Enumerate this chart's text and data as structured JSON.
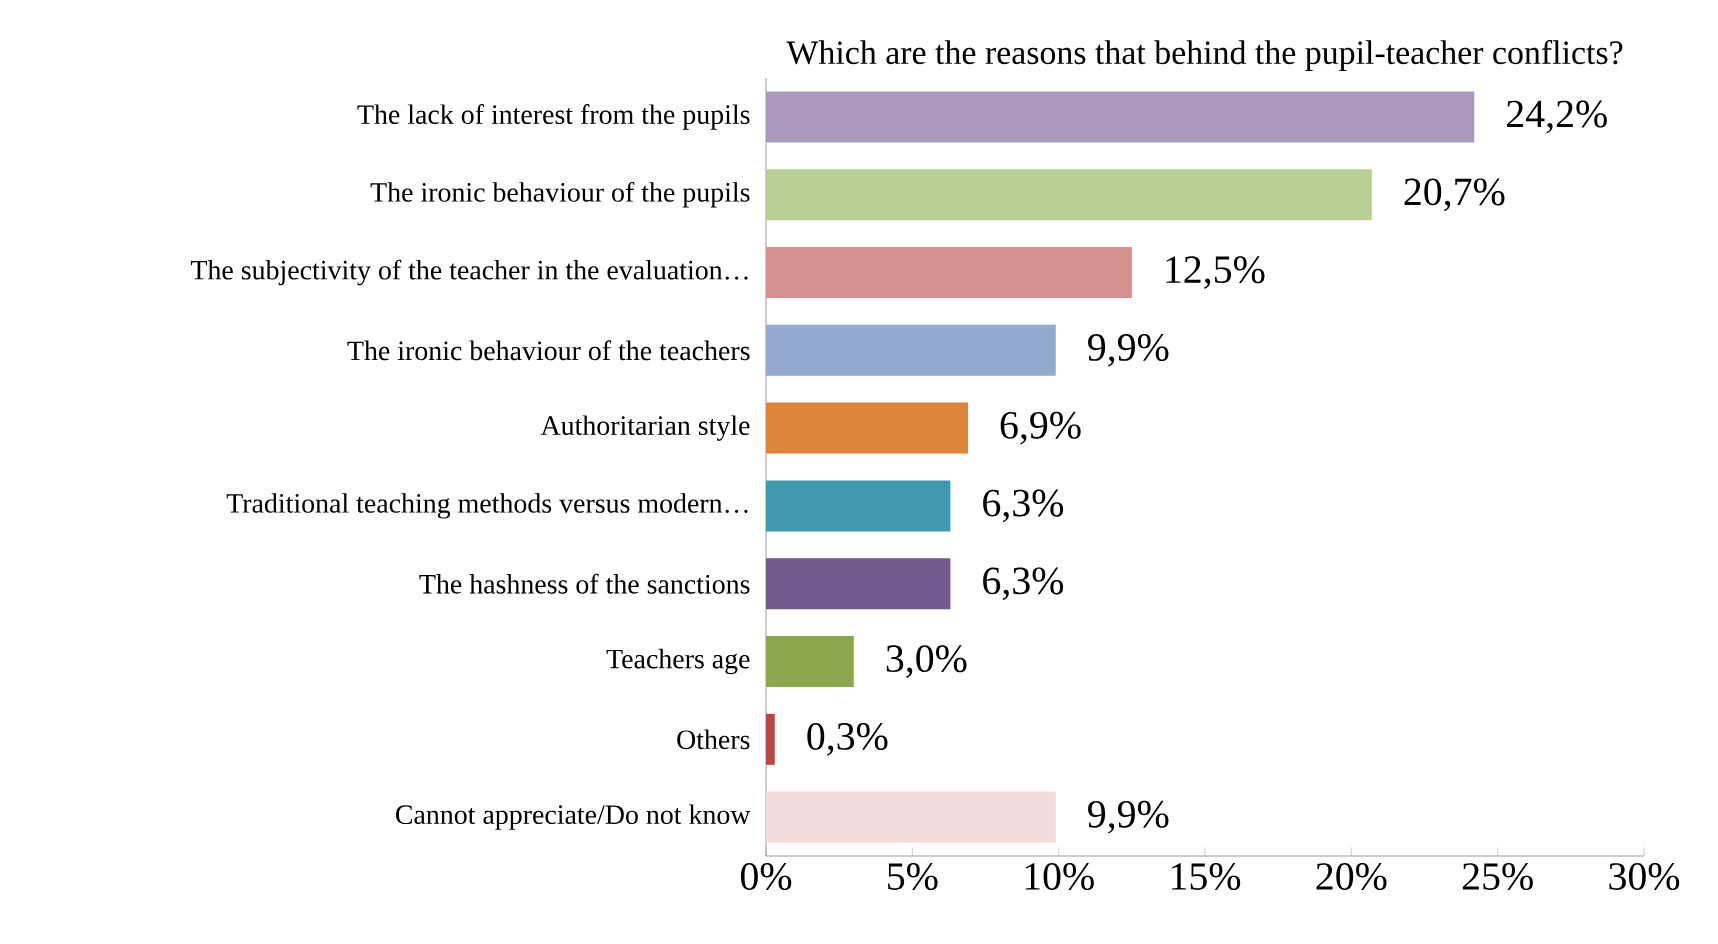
{
  "chart_data": {
    "type": "bar",
    "orientation": "horizontal",
    "title": "Which are the reasons that behind the pupil-teacher conflicts?",
    "categories": [
      "The lack of interest from the pupils",
      "The ironic behaviour of the pupils",
      "The subjectivity of the teacher in the evaluation…",
      "The ironic behaviour of the teachers",
      "Authoritarian style",
      "Traditional teaching methods versus modern…",
      "The hashness of the sanctions",
      "Teachers age",
      "Others",
      "Cannot appreciate/Do not know"
    ],
    "values": [
      24.2,
      20.7,
      12.5,
      9.9,
      6.9,
      6.3,
      6.3,
      3.0,
      0.3,
      9.9
    ],
    "value_labels": [
      "24,2%",
      "20,7%",
      "12,5%",
      "9,9%",
      "6,9%",
      "6,3%",
      "6,3%",
      "3,0%",
      "0,3%",
      "9,9%"
    ],
    "colors": [
      "#a899bd",
      "#b9cf96",
      "#d49190",
      "#93a9cf",
      "#dd843d",
      "#4299ae",
      "#705a8c",
      "#8ca74f",
      "#b74745",
      "#f1dcdb"
    ],
    "xlim": [
      0,
      30
    ],
    "xticks": [
      {
        "value": 0,
        "label": "0%"
      },
      {
        "value": 5,
        "label": "5%"
      },
      {
        "value": 10,
        "label": "10%"
      },
      {
        "value": 15,
        "label": "15%"
      },
      {
        "value": 20,
        "label": "20%"
      },
      {
        "value": 25,
        "label": "25%"
      },
      {
        "value": 30,
        "label": "30%"
      }
    ],
    "data_labels": false
  }
}
